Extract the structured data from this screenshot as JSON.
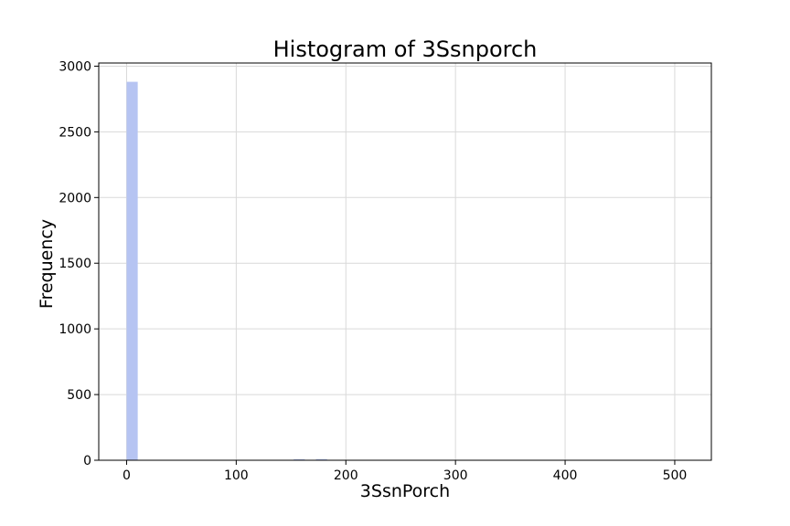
{
  "chart_data": {
    "type": "bar",
    "title": "Histogram of 3Ssnporch",
    "xlabel": "3SsnPorch",
    "ylabel": "Frequency",
    "xlim": [
      -25.4,
      533.4
    ],
    "ylim": [
      0,
      3024
    ],
    "xticks": [
      0,
      100,
      200,
      300,
      400,
      500
    ],
    "yticks": [
      0,
      500,
      1000,
      1500,
      2000,
      2500,
      3000
    ],
    "grid": true,
    "bar_color": "#b6c4f2",
    "bins": [
      {
        "x0": 0,
        "x1": 10.16,
        "count": 2881
      },
      {
        "x0": 152.4,
        "x1": 162.56,
        "count": 8
      },
      {
        "x0": 172.72,
        "x1": 182.88,
        "count": 9
      }
    ]
  }
}
